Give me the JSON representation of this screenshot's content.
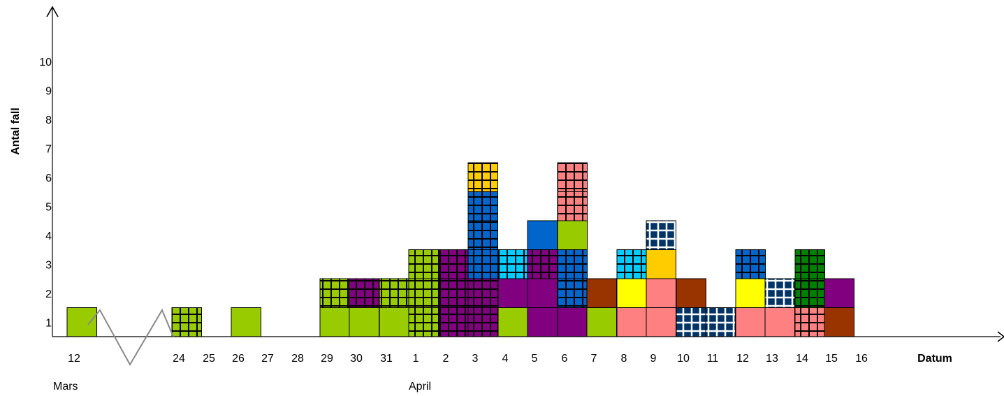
{
  "chart_data": {
    "type": "bar",
    "subtype": "epidemic-curve-stacked-cases",
    "ylabel": "Antal fall",
    "xlabel": "Datum",
    "y_ticks": [
      "1",
      "2",
      "3",
      "4",
      "5",
      "6",
      "7",
      "8",
      "9",
      "10"
    ],
    "x_ticks": [
      "12",
      "24",
      "25",
      "26",
      "27",
      "28",
      "29",
      "30",
      "31",
      "1",
      "2",
      "3",
      "4",
      "5",
      "6",
      "7",
      "8",
      "9",
      "10",
      "11",
      "12",
      "13",
      "14",
      "15",
      "16"
    ],
    "months": [
      {
        "label": "Mars",
        "start_tick": "12"
      },
      {
        "label": "April",
        "start_tick": "1"
      }
    ],
    "axis_break_between": [
      "12",
      "24"
    ],
    "colors": {
      "lightgreen": "#99cc00",
      "purple": "#800080",
      "blue": "#0066cc",
      "cyan": "#00ccff",
      "gold": "#ffcc00",
      "salmon": "#ff8080",
      "brown": "#993300",
      "yellow": "#ffff00",
      "navy": "#003366",
      "darkgreen": "#008000"
    },
    "columns": [
      {
        "date": "12 Mars",
        "cases": [
          {
            "c": "lightgreen",
            "p": "solid"
          }
        ]
      },
      {
        "date": "24 Mars",
        "cases": [
          {
            "c": "lightgreen",
            "p": "grid"
          }
        ]
      },
      {
        "date": "26 Mars",
        "cases": [
          {
            "c": "lightgreen",
            "p": "solid"
          }
        ]
      },
      {
        "date": "29 Mars",
        "cases": [
          {
            "c": "lightgreen",
            "p": "solid"
          },
          {
            "c": "lightgreen",
            "p": "grid"
          }
        ]
      },
      {
        "date": "30 Mars",
        "cases": [
          {
            "c": "lightgreen",
            "p": "solid"
          },
          {
            "c": "purple",
            "p": "grid"
          }
        ]
      },
      {
        "date": "31 Mars",
        "cases": [
          {
            "c": "lightgreen",
            "p": "solid"
          },
          {
            "c": "lightgreen",
            "p": "grid"
          }
        ]
      },
      {
        "date": "1 April",
        "cases": [
          {
            "c": "lightgreen",
            "p": "grid"
          },
          {
            "c": "lightgreen",
            "p": "grid"
          },
          {
            "c": "lightgreen",
            "p": "grid"
          }
        ]
      },
      {
        "date": "2 April",
        "cases": [
          {
            "c": "purple",
            "p": "grid"
          },
          {
            "c": "purple",
            "p": "grid"
          },
          {
            "c": "purple",
            "p": "grid"
          }
        ]
      },
      {
        "date": "3 April",
        "cases": [
          {
            "c": "purple",
            "p": "grid"
          },
          {
            "c": "purple",
            "p": "grid"
          },
          {
            "c": "blue",
            "p": "grid"
          },
          {
            "c": "blue",
            "p": "grid"
          },
          {
            "c": "blue",
            "p": "grid"
          },
          {
            "c": "gold",
            "p": "grid"
          }
        ]
      },
      {
        "date": "4 April",
        "cases": [
          {
            "c": "lightgreen",
            "p": "solid"
          },
          {
            "c": "purple",
            "p": "solid"
          },
          {
            "c": "cyan",
            "p": "grid"
          }
        ]
      },
      {
        "date": "5 April",
        "cases": [
          {
            "c": "purple",
            "p": "solid"
          },
          {
            "c": "purple",
            "p": "solid"
          },
          {
            "c": "purple",
            "p": "grid"
          },
          {
            "c": "blue",
            "p": "solid"
          }
        ]
      },
      {
        "date": "6 April",
        "cases": [
          {
            "c": "purple",
            "p": "solid"
          },
          {
            "c": "blue",
            "p": "grid"
          },
          {
            "c": "blue",
            "p": "grid"
          },
          {
            "c": "lightgreen",
            "p": "solid"
          },
          {
            "c": "salmon",
            "p": "grid"
          },
          {
            "c": "salmon",
            "p": "grid"
          }
        ]
      },
      {
        "date": "7 April",
        "cases": [
          {
            "c": "lightgreen",
            "p": "solid"
          },
          {
            "c": "brown",
            "p": "solid"
          }
        ]
      },
      {
        "date": "8 April",
        "cases": [
          {
            "c": "salmon",
            "p": "solid"
          },
          {
            "c": "yellow",
            "p": "solid"
          },
          {
            "c": "cyan",
            "p": "grid"
          }
        ]
      },
      {
        "date": "9 April",
        "cases": [
          {
            "c": "salmon",
            "p": "solid"
          },
          {
            "c": "salmon",
            "p": "solid"
          },
          {
            "c": "gold",
            "p": "solid"
          },
          {
            "c": "navy",
            "p": "whitegrid"
          }
        ]
      },
      {
        "date": "10 April",
        "cases": [
          {
            "c": "navy",
            "p": "whitegrid"
          },
          {
            "c": "brown",
            "p": "solid"
          }
        ]
      },
      {
        "date": "11 April",
        "cases": [
          {
            "c": "navy",
            "p": "whitegrid"
          }
        ]
      },
      {
        "date": "12 April",
        "cases": [
          {
            "c": "salmon",
            "p": "solid"
          },
          {
            "c": "yellow",
            "p": "solid"
          },
          {
            "c": "blue",
            "p": "grid"
          }
        ]
      },
      {
        "date": "13 April",
        "cases": [
          {
            "c": "salmon",
            "p": "solid"
          },
          {
            "c": "navy",
            "p": "whitegrid"
          }
        ]
      },
      {
        "date": "14 April",
        "cases": [
          {
            "c": "salmon",
            "p": "grid"
          },
          {
            "c": "darkgreen",
            "p": "grid"
          },
          {
            "c": "darkgreen",
            "p": "grid"
          }
        ]
      },
      {
        "date": "15 April",
        "cases": [
          {
            "c": "brown",
            "p": "solid"
          },
          {
            "c": "purple",
            "p": "solid"
          }
        ]
      }
    ],
    "ylim": [
      0,
      10
    ],
    "grid": false,
    "legend": "none"
  }
}
